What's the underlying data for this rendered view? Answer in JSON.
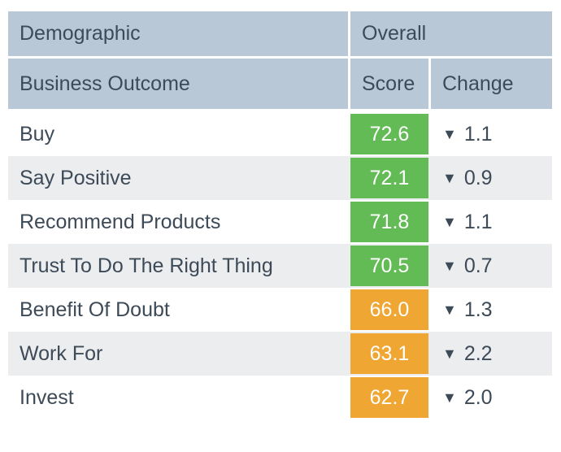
{
  "chart_data": {
    "type": "table",
    "header": {
      "demographic": "Demographic",
      "overall": "Overall",
      "business_outcome": "Business Outcome",
      "score": "Score",
      "change": "Change"
    },
    "down_arrow": "▼",
    "rows": [
      {
        "outcome": "Buy",
        "score": "72.6",
        "change": "1.1",
        "direction": "down",
        "score_color": "green"
      },
      {
        "outcome": "Say Positive",
        "score": "72.1",
        "change": "0.9",
        "direction": "down",
        "score_color": "green"
      },
      {
        "outcome": "Recommend Products",
        "score": "71.8",
        "change": "1.1",
        "direction": "down",
        "score_color": "green"
      },
      {
        "outcome": "Trust To Do The Right Thing",
        "score": "70.5",
        "change": "0.7",
        "direction": "down",
        "score_color": "green"
      },
      {
        "outcome": "Benefit Of Doubt",
        "score": "66.0",
        "change": "1.3",
        "direction": "down",
        "score_color": "orange"
      },
      {
        "outcome": "Work For",
        "score": "63.1",
        "change": "2.2",
        "direction": "down",
        "score_color": "orange"
      },
      {
        "outcome": "Invest",
        "score": "62.7",
        "change": "2.0",
        "direction": "down",
        "score_color": "orange"
      }
    ]
  },
  "colors": {
    "header_bg": "#b9c8d7",
    "green": "#62bb55",
    "orange": "#f0a632",
    "alt_row": "#ebedef",
    "text": "#3d4a57",
    "score_text": "#ffffff"
  }
}
